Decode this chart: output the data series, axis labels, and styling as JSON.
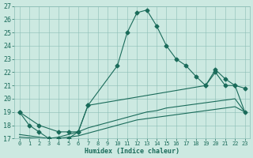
{
  "xlabel": "Humidex (Indice chaleur)",
  "bg_color": "#cce9e1",
  "grid_color": "#8bbdb5",
  "line_color": "#1a6b5a",
  "xlim": [
    -0.5,
    23.5
  ],
  "ylim": [
    17,
    27
  ],
  "xticks": [
    0,
    1,
    2,
    3,
    4,
    5,
    6,
    7,
    8,
    9,
    10,
    11,
    12,
    13,
    14,
    15,
    16,
    17,
    18,
    19,
    20,
    21,
    22,
    23
  ],
  "yticks": [
    17,
    18,
    19,
    20,
    21,
    22,
    23,
    24,
    25,
    26,
    27
  ],
  "line1_x": [
    0,
    1,
    2,
    3,
    4,
    5,
    6,
    7,
    10,
    11,
    12,
    13,
    14,
    15,
    16,
    17,
    18,
    19,
    20,
    21,
    22,
    23
  ],
  "line1_y": [
    19.0,
    18.0,
    17.5,
    17.0,
    17.0,
    17.0,
    17.5,
    19.5,
    22.5,
    25.0,
    26.5,
    26.7,
    25.5,
    24.0,
    23.0,
    22.5,
    21.7,
    21.0,
    22.0,
    21.0,
    21.0,
    19.0
  ],
  "line2_x": [
    0,
    2,
    4,
    5,
    6,
    7,
    19,
    20,
    21,
    22,
    23
  ],
  "line2_y": [
    19.0,
    18.0,
    17.5,
    17.5,
    17.5,
    19.5,
    21.0,
    22.2,
    21.5,
    21.0,
    20.8
  ],
  "line3_x": [
    0,
    1,
    2,
    3,
    4,
    5,
    6,
    7,
    8,
    9,
    10,
    11,
    12,
    13,
    14,
    15,
    16,
    17,
    18,
    19,
    20,
    21,
    22,
    23
  ],
  "line3_y": [
    17.3,
    17.2,
    17.1,
    17.0,
    17.1,
    17.3,
    17.5,
    17.8,
    18.0,
    18.2,
    18.4,
    18.6,
    18.8,
    19.0,
    19.1,
    19.3,
    19.4,
    19.5,
    19.6,
    19.7,
    19.8,
    19.9,
    20.0,
    19.0
  ],
  "line4_x": [
    0,
    1,
    2,
    3,
    4,
    5,
    6,
    7,
    8,
    9,
    10,
    11,
    12,
    13,
    14,
    15,
    16,
    17,
    18,
    19,
    20,
    21,
    22,
    23
  ],
  "line4_y": [
    17.1,
    17.05,
    17.0,
    16.95,
    17.0,
    17.1,
    17.2,
    17.4,
    17.6,
    17.8,
    18.0,
    18.2,
    18.4,
    18.5,
    18.6,
    18.7,
    18.8,
    18.9,
    19.0,
    19.1,
    19.2,
    19.3,
    19.4,
    19.0
  ]
}
